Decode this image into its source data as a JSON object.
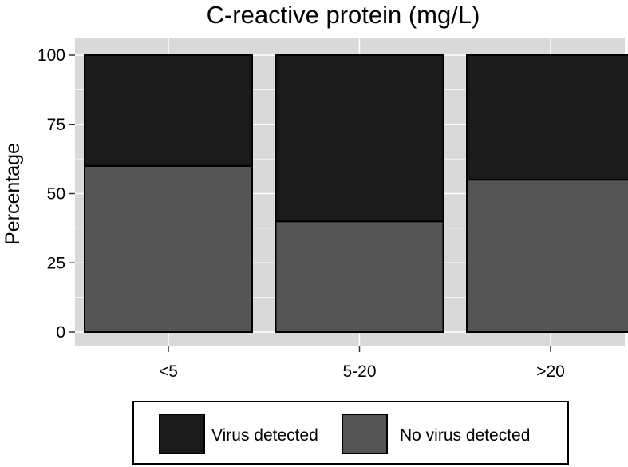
{
  "chart_data": {
    "type": "bar",
    "stacked": true,
    "title": "C-reactive protein (mg/L)",
    "xlabel": "",
    "ylabel": "Percentage",
    "categories": [
      "<5",
      "5-20",
      ">20"
    ],
    "series": [
      {
        "name": "No virus detected",
        "values": [
          60,
          40,
          55
        ],
        "color": "#555555"
      },
      {
        "name": "Virus detected",
        "values": [
          40,
          60,
          45
        ],
        "color": "#1a1a1a"
      }
    ],
    "ylim": [
      0,
      100
    ],
    "yticks": [
      0,
      25,
      50,
      75,
      100
    ],
    "ytick_labels": [
      "0",
      "25",
      "50",
      "75",
      "100"
    ],
    "grid": true,
    "panel_background": "#d9d9d9",
    "grid_color": "#ffffff",
    "legend_position": "bottom",
    "legend_order": [
      "Virus detected",
      "No virus detected"
    ]
  }
}
